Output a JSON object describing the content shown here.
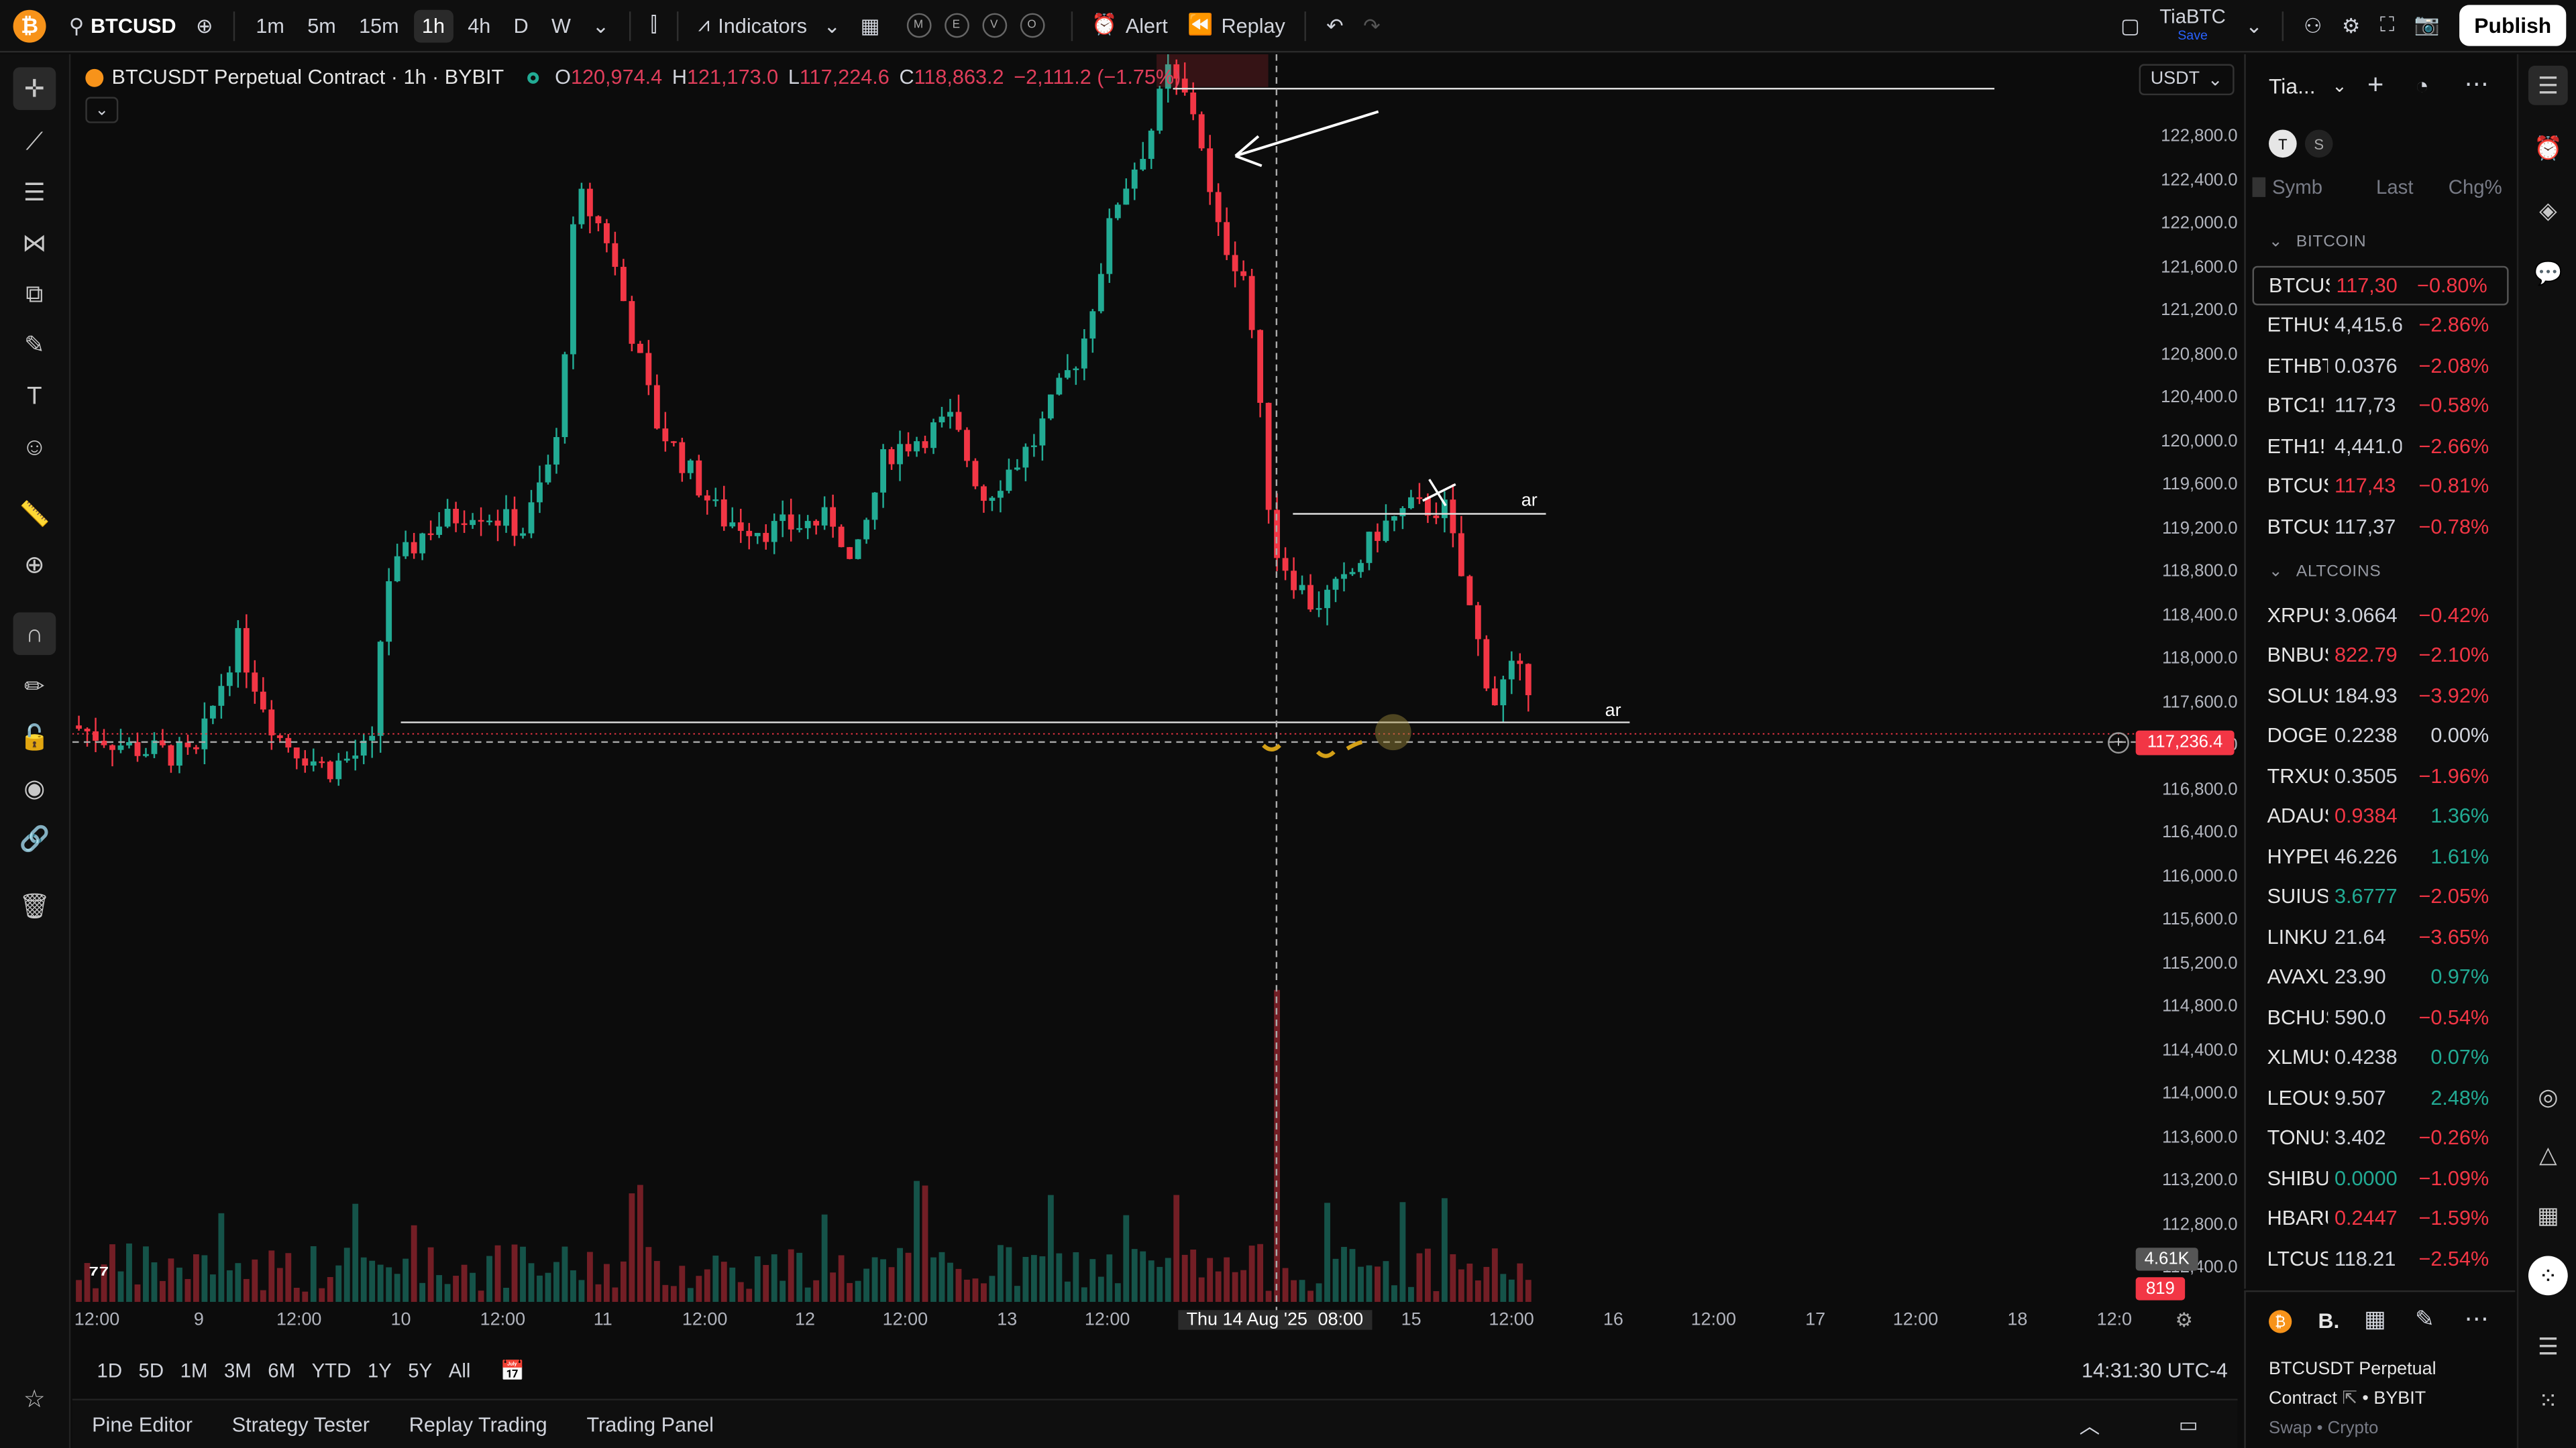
{
  "topbar": {
    "symbol": "BTCUSD",
    "timeframes": [
      "1m",
      "5m",
      "15m",
      "1h",
      "4h",
      "D",
      "W"
    ],
    "active_timeframe": "1h",
    "indicators": "Indicators",
    "circles": [
      "M",
      "E",
      "V",
      "O"
    ],
    "alert": "Alert",
    "replay": "Replay",
    "user": "TiaBTC",
    "user_sub": "Save",
    "publish": "Publish"
  },
  "legend": {
    "title": "BTCUSDT Perpetual Contract · 1h · BYBIT",
    "o_label": "O",
    "o": "120,974.4",
    "h_label": "H",
    "h": "121,173.0",
    "l_label": "L",
    "l": "117,224.6",
    "c_label": "C",
    "c": "118,863.2",
    "change": "−2,111.2 (−1.75%)"
  },
  "currency": "USDT",
  "price_labels": [
    "122,800.0",
    "122,400.0",
    "122,000.0",
    "121,600.0",
    "121,200.0",
    "120,800.0",
    "120,400.0",
    "120,000.0",
    "119,600.0",
    "119,200.0",
    "118,800.0",
    "118,400.0",
    "118,000.0",
    "117,600.0",
    "117,200.0",
    "116,800.0",
    "116,400.0",
    "116,000.0",
    "115,600.0",
    "115,200.0",
    "114,800.0",
    "114,400.0",
    "114,000.0",
    "113,600.0",
    "113,200.0",
    "112,800.0",
    "112,400.0"
  ],
  "current_price": "117,236.4",
  "volume_badge": "4.61K",
  "volume_badge2": "819",
  "time_labels": [
    "12:00",
    "9",
    "12:00",
    "10",
    "12:00",
    "11",
    "12:00",
    "12",
    "12:00",
    "13",
    "12:00",
    "Thu 14 Aug '25",
    "08:00",
    "15",
    "12:00",
    "16",
    "12:00",
    "17",
    "12:00",
    "18",
    "12:0"
  ],
  "annotations": {
    "ar1": "ar",
    "ar2": "ar"
  },
  "range_buttons": [
    "1D",
    "5D",
    "1M",
    "3M",
    "6M",
    "YTD",
    "1Y",
    "5Y",
    "All"
  ],
  "clock": "14:31:30 UTC-4",
  "bottom_tabs": [
    "Pine Editor",
    "Strategy Tester",
    "Replay Trading",
    "Trading Panel"
  ],
  "watchlist": {
    "title": "Tia...",
    "tags": [
      "T",
      "S"
    ],
    "col_symbol": "Symb",
    "col_last": "Last",
    "col_chg": "Chg%",
    "sections": [
      {
        "name": "BITCOIN",
        "rows": [
          {
            "sym": "BTCUSDT",
            "last": "117,30",
            "chg": "−0.80%",
            "dir": "neg",
            "last_dir": "neg"
          },
          {
            "sym": "ETHUSDT",
            "last": "4,415.6",
            "chg": "−2.86%",
            "dir": "neg",
            "last_dir": "neu"
          },
          {
            "sym": "ETHBTC",
            "last": "0.0376",
            "chg": "−2.08%",
            "dir": "neg",
            "last_dir": "neu"
          },
          {
            "sym": "BTC1!",
            "last": "117,73",
            "chg": "−0.58%",
            "dir": "neg",
            "last_dir": "neu"
          },
          {
            "sym": "ETH1!",
            "last": "4,441.0",
            "chg": "−2.66%",
            "dir": "neg",
            "last_dir": "neu"
          },
          {
            "sym": "BTCUSD",
            "last": "117,43",
            "chg": "−0.81%",
            "dir": "neg",
            "last_dir": "neg"
          },
          {
            "sym": "BTCUSD",
            "last": "117,37",
            "chg": "−0.78%",
            "dir": "neg",
            "last_dir": "neu"
          }
        ]
      },
      {
        "name": "ALTCOINS",
        "rows": [
          {
            "sym": "XRPUSD",
            "last": "3.0664",
            "chg": "−0.42%",
            "dir": "neg",
            "last_dir": "neu"
          },
          {
            "sym": "BNBUSD",
            "last": "822.79",
            "chg": "−2.10%",
            "dir": "neg",
            "last_dir": "neg"
          },
          {
            "sym": "SOLUSD",
            "last": "184.93",
            "chg": "−3.92%",
            "dir": "neg",
            "last_dir": "neu"
          },
          {
            "sym": "DOGEUSD",
            "last": "0.2238",
            "chg": "0.00%",
            "dir": "neu",
            "last_dir": "neu"
          },
          {
            "sym": "TRXUSD",
            "last": "0.3505",
            "chg": "−1.96%",
            "dir": "neg",
            "last_dir": "neu"
          },
          {
            "sym": "ADAUSD",
            "last": "0.9384",
            "chg": "1.36%",
            "dir": "pos",
            "last_dir": "neg"
          },
          {
            "sym": "HYPEUSD",
            "last": "46.226",
            "chg": "1.61%",
            "dir": "pos",
            "last_dir": "neu"
          },
          {
            "sym": "SUIUSD",
            "last": "3.6777",
            "chg": "−2.05%",
            "dir": "neg",
            "last_dir": "pos"
          },
          {
            "sym": "LINKUSD",
            "last": "21.64",
            "chg": "−3.65%",
            "dir": "neg",
            "last_dir": "neu"
          },
          {
            "sym": "AVAXUSD",
            "last": "23.90",
            "chg": "0.97%",
            "dir": "pos",
            "last_dir": "neu"
          },
          {
            "sym": "BCHUSD",
            "last": "590.0",
            "chg": "−0.54%",
            "dir": "neg",
            "last_dir": "neu"
          },
          {
            "sym": "XLMUSD",
            "last": "0.4238",
            "chg": "0.07%",
            "dir": "pos",
            "last_dir": "neu"
          },
          {
            "sym": "LEOUSD",
            "last": "9.507",
            "chg": "2.48%",
            "dir": "pos",
            "last_dir": "neu"
          },
          {
            "sym": "TONUSD",
            "last": "3.402",
            "chg": "−0.26%",
            "dir": "neg",
            "last_dir": "neu"
          },
          {
            "sym": "SHIBUSD",
            "last": "0.0000",
            "chg": "−1.09%",
            "dir": "neg",
            "last_dir": "pos"
          },
          {
            "sym": "HBARUSD",
            "last": "0.2447",
            "chg": "−1.59%",
            "dir": "neg",
            "last_dir": "neg"
          },
          {
            "sym": "LTCUSD",
            "last": "118.21",
            "chg": "−2.54%",
            "dir": "neg",
            "last_dir": "neu"
          }
        ]
      }
    ]
  },
  "details": {
    "short": "B.",
    "name": "BTCUSDT Perpetual",
    "name2": "Contract",
    "exchange": "BYBIT",
    "type": "Swap • Crypto"
  },
  "colors": {
    "up": "#22ab94",
    "down": "#f23645",
    "bg": "#0c0c0c"
  }
}
